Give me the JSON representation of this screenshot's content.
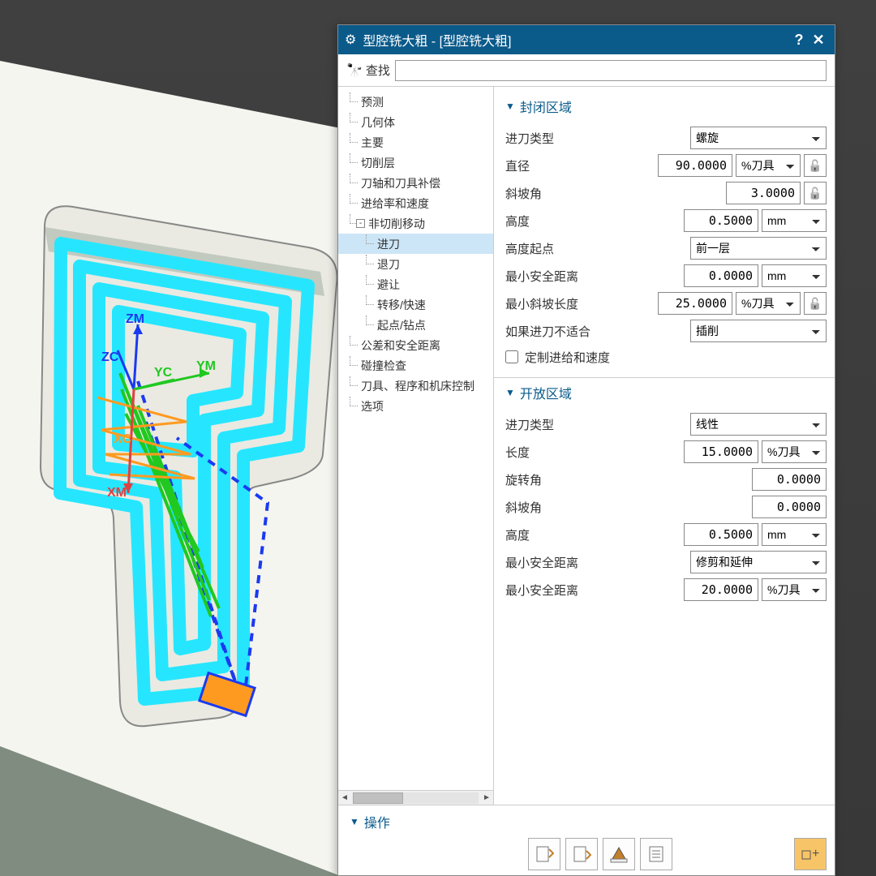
{
  "dialog": {
    "title": "型腔铣大粗 - [型腔铣大粗]",
    "search_label": "查找"
  },
  "tree": {
    "items": [
      {
        "label": "预测",
        "level": 0
      },
      {
        "label": "几何体",
        "level": 0
      },
      {
        "label": "主要",
        "level": 0
      },
      {
        "label": "切削层",
        "level": 0
      },
      {
        "label": "刀轴和刀具补偿",
        "level": 0
      },
      {
        "label": "进给率和速度",
        "level": 0
      },
      {
        "label": "非切削移动",
        "level": 0,
        "expander": "-"
      },
      {
        "label": "进刀",
        "level": 1,
        "selected": true
      },
      {
        "label": "退刀",
        "level": 1
      },
      {
        "label": "避让",
        "level": 1
      },
      {
        "label": "转移/快速",
        "level": 1
      },
      {
        "label": "起点/钻点",
        "level": 1
      },
      {
        "label": "公差和安全距离",
        "level": 0
      },
      {
        "label": "碰撞检查",
        "level": 0
      },
      {
        "label": "刀具、程序和机床控制",
        "level": 0
      },
      {
        "label": "选项",
        "level": 0
      }
    ]
  },
  "sections": {
    "closed": {
      "title": "封闭区域",
      "rows": [
        {
          "label": "进刀类型",
          "type": "combo",
          "value": "螺旋",
          "width": "wide"
        },
        {
          "label": "直径",
          "type": "num_unit_lock",
          "value": "90.0000",
          "unit": "%刀具"
        },
        {
          "label": "斜坡角",
          "type": "num_lock",
          "value": "3.0000"
        },
        {
          "label": "高度",
          "type": "num_unit",
          "value": "0.5000",
          "unit": "mm"
        },
        {
          "label": "高度起点",
          "type": "combo",
          "value": "前一层",
          "width": "wide"
        },
        {
          "label": "最小安全距离",
          "type": "num_unit",
          "value": "0.0000",
          "unit": "mm"
        },
        {
          "label": "最小斜坡长度",
          "type": "num_unit_lock",
          "value": "25.0000",
          "unit": "%刀具"
        },
        {
          "label": "如果进刀不适合",
          "type": "combo",
          "value": "插削",
          "width": "wide"
        }
      ],
      "checkbox": "定制进给和速度"
    },
    "open": {
      "title": "开放区域",
      "rows": [
        {
          "label": "进刀类型",
          "type": "combo",
          "value": "线性",
          "width": "wide"
        },
        {
          "label": "长度",
          "type": "num_unit",
          "value": "15.0000",
          "unit": "%刀具"
        },
        {
          "label": "旋转角",
          "type": "num",
          "value": "0.0000"
        },
        {
          "label": "斜坡角",
          "type": "num",
          "value": "0.0000"
        },
        {
          "label": "高度",
          "type": "num_unit",
          "value": "0.5000",
          "unit": "mm"
        },
        {
          "label": "最小安全距离",
          "type": "combo",
          "value": "修剪和延伸",
          "width": "wide"
        },
        {
          "label": "最小安全距离",
          "type": "num_unit",
          "value": "20.0000",
          "unit": "%刀具"
        }
      ]
    }
  },
  "footer": {
    "title": "操作"
  },
  "viewport": {
    "background": "#3a3a3a",
    "part_face": "#e8e8e0",
    "part_side": "#7a8a7a",
    "toolpath_offset": "#26e6ff",
    "toolpath_rapid": "#1a3af0",
    "toolpath_cut": "#20c820",
    "toolpath_engage": "#ff9a20",
    "axes": {
      "ZM": "#1a3af0",
      "ZC": "#1a3af0",
      "YM": "#20c820",
      "YC": "#20c820",
      "XM": "#e04040",
      "XC": "#ff9a20"
    }
  }
}
